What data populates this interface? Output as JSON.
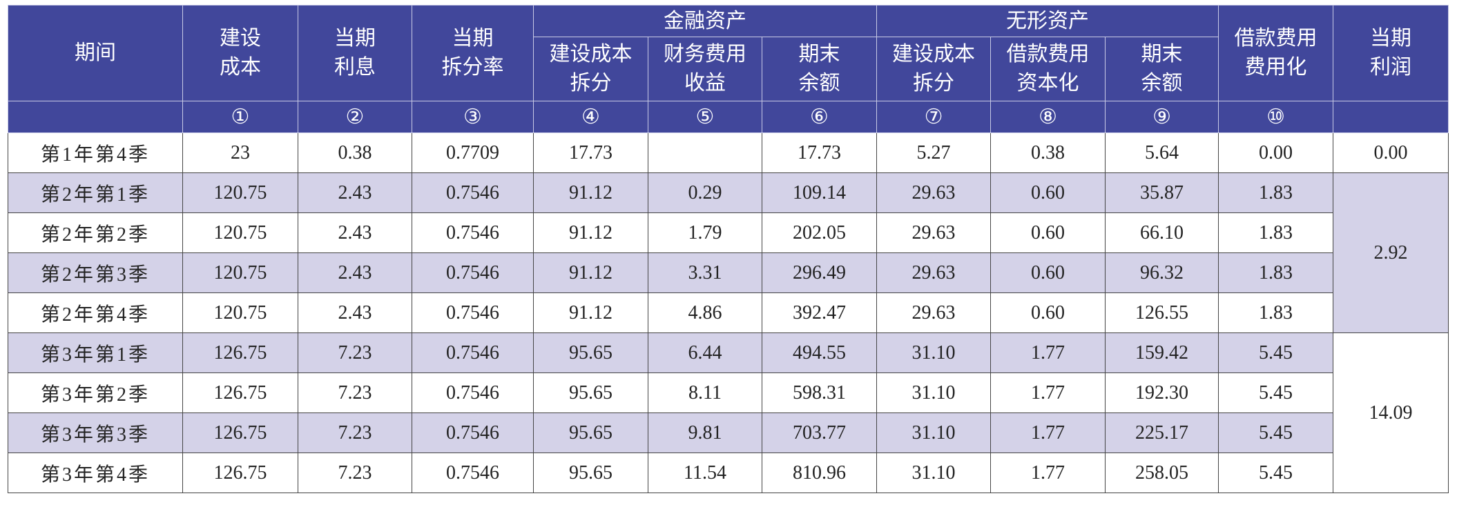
{
  "header": {
    "columns": [
      [
        "期间"
      ],
      [
        "建设",
        "成本"
      ],
      [
        "当期",
        "利息"
      ],
      [
        "当期",
        "拆分率"
      ],
      [
        "建设成本",
        "拆分"
      ],
      [
        "财务费用",
        "收益"
      ],
      [
        "期末",
        "余额"
      ],
      [
        "建设成本",
        "拆分"
      ],
      [
        "借款费用",
        "资本化"
      ],
      [
        "期末",
        "余额"
      ],
      [
        "借款费用",
        "费用化"
      ],
      [
        "当期",
        "利润"
      ]
    ],
    "groups": [
      "金融资产",
      "无形资产"
    ],
    "numbers": [
      "①",
      "②",
      "③",
      "④",
      "⑤",
      "⑥",
      "⑦",
      "⑧",
      "⑨",
      "⑩"
    ]
  },
  "table": {
    "rows": [
      [
        "第1年第4季",
        "23",
        "0.38",
        "0.7709",
        "17.73",
        null,
        "17.73",
        "5.27",
        "0.38",
        "5.64",
        "0.00"
      ],
      [
        "第2年第1季",
        "120.75",
        "2.43",
        "0.7546",
        "91.12",
        "0.29",
        "109.14",
        "29.63",
        "0.60",
        "35.87",
        "1.83"
      ],
      [
        "第2年第2季",
        "120.75",
        "2.43",
        "0.7546",
        "91.12",
        "1.79",
        "202.05",
        "29.63",
        "0.60",
        "66.10",
        "1.83"
      ],
      [
        "第2年第3季",
        "120.75",
        "2.43",
        "0.7546",
        "91.12",
        "3.31",
        "296.49",
        "29.63",
        "0.60",
        "96.32",
        "1.83"
      ],
      [
        "第2年第4季",
        "120.75",
        "2.43",
        "0.7546",
        "91.12",
        "4.86",
        "392.47",
        "29.63",
        "0.60",
        "126.55",
        "1.83"
      ],
      [
        "第3年第1季",
        "126.75",
        "7.23",
        "0.7546",
        "95.65",
        "6.44",
        "494.55",
        "31.10",
        "1.77",
        "159.42",
        "5.45"
      ],
      [
        "第3年第2季",
        "126.75",
        "7.23",
        "0.7546",
        "95.65",
        "8.11",
        "598.31",
        "31.10",
        "1.77",
        "192.30",
        "5.45"
      ],
      [
        "第3年第3季",
        "126.75",
        "7.23",
        "0.7546",
        "95.65",
        "9.81",
        "703.77",
        "31.10",
        "1.77",
        "225.17",
        "5.45"
      ],
      [
        "第3年第4季",
        "126.75",
        "7.23",
        "0.7546",
        "95.65",
        "11.54",
        "810.96",
        "31.10",
        "1.77",
        "258.05",
        "5.45"
      ]
    ],
    "profit": [
      "0.00",
      "2.92",
      "14.09"
    ]
  }
}
